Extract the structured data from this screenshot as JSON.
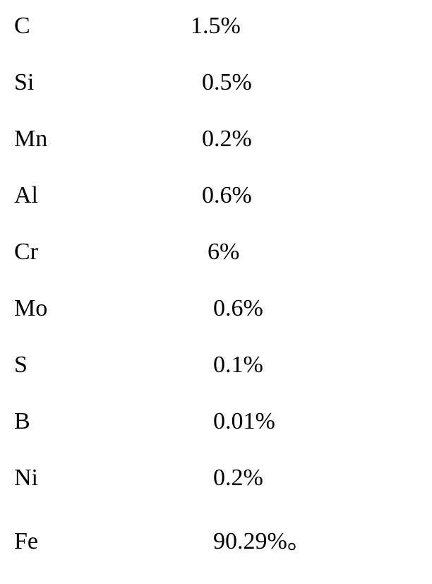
{
  "composition": {
    "type": "table",
    "background_color": "#ffffff",
    "text_color": "#000000",
    "font_family": "Times New Roman",
    "font_size": 34,
    "row_spacing": 42,
    "rows": [
      {
        "element": "C",
        "percentage": "1.5%"
      },
      {
        "element": "Si",
        "percentage": "0.5%"
      },
      {
        "element": "Mn",
        "percentage": "0.2%"
      },
      {
        "element": "Al",
        "percentage": "0.6%"
      },
      {
        "element": "Cr",
        "percentage": "6%"
      },
      {
        "element": "Mo",
        "percentage": "0.6%"
      },
      {
        "element": "S",
        "percentage": "0.1%"
      },
      {
        "element": "B",
        "percentage": "0.01%"
      },
      {
        "element": "Ni",
        "percentage": "0.2%"
      },
      {
        "element": "Fe",
        "percentage": "90.29%。"
      }
    ]
  }
}
